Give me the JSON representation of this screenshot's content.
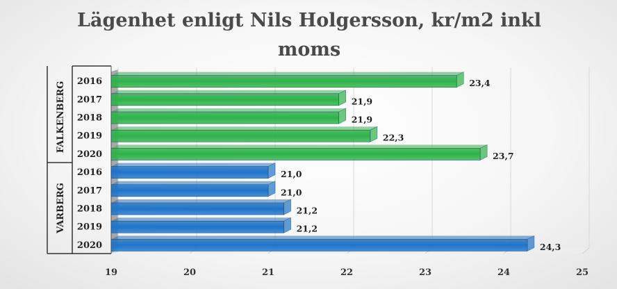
{
  "title_line1": "Lägenhet enligt Nils Holgersson, kr/m2 inkl",
  "title_line2": "moms",
  "chart_data": {
    "type": "bar",
    "orientation": "horizontal",
    "title": "Lägenhet enligt Nils Holgersson, kr/m2 inkl moms",
    "xlim": [
      19,
      25
    ],
    "x_ticks": [
      "19",
      "20",
      "21",
      "22",
      "23",
      "24",
      "25"
    ],
    "grid": true,
    "groups": [
      {
        "name": "FALKENBERG",
        "color": "#2fb24a",
        "categories": [
          "2016",
          "2017",
          "2018",
          "2019",
          "2020"
        ],
        "values": [
          23.4,
          21.9,
          21.9,
          22.3,
          23.7
        ],
        "labels": [
          "23,4",
          "21,9",
          "21,9",
          "22,3",
          "23,7"
        ]
      },
      {
        "name": "VARBERG",
        "color": "#1f74c8",
        "categories": [
          "2016",
          "2017",
          "2018",
          "2019",
          "2020"
        ],
        "values": [
          21.0,
          21.0,
          21.2,
          21.2,
          24.3
        ],
        "labels": [
          "21,0",
          "21,0",
          "21,2",
          "21,2",
          "24,3"
        ]
      }
    ]
  }
}
